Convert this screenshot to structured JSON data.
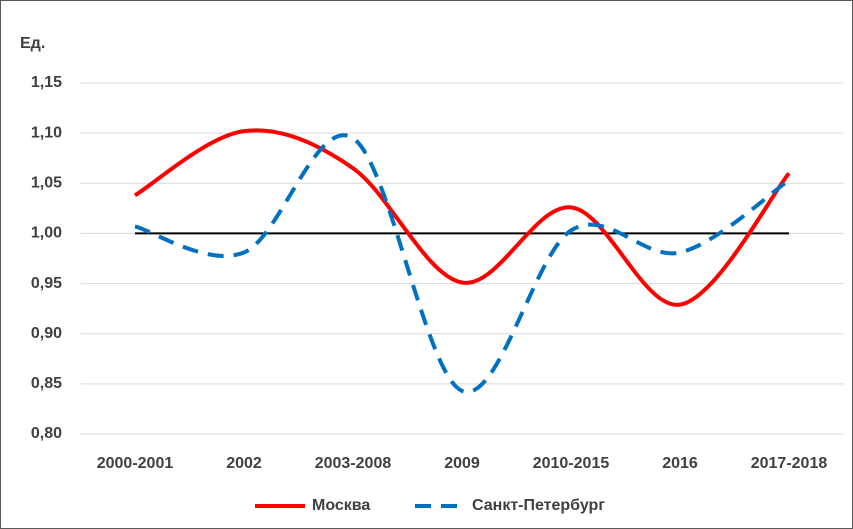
{
  "chart_data": {
    "type": "line",
    "y_label": "Ед.",
    "categories": [
      "2000-2001",
      "2002",
      "2003-2008",
      "2009",
      "2010-2015",
      "2016",
      "2017-2018"
    ],
    "series": [
      {
        "name": "Москва",
        "color": "#ff0000",
        "dash": false,
        "values": [
          1.038,
          1.102,
          1.065,
          0.951,
          1.026,
          0.929,
          1.06
        ]
      },
      {
        "name": "Санкт-Петербург",
        "color": "#0070c0",
        "dash": true,
        "values": [
          1.007,
          0.981,
          1.095,
          0.843,
          1.003,
          0.981,
          1.053
        ]
      }
    ],
    "reference_line": 1.0,
    "reference_color": "#000000",
    "ylim": [
      0.8,
      1.15
    ],
    "yticks": [
      {
        "value": 0.8,
        "label": "0,80"
      },
      {
        "value": 0.85,
        "label": "0,85"
      },
      {
        "value": 0.9,
        "label": "0,90"
      },
      {
        "value": 0.95,
        "label": "0,95"
      },
      {
        "value": 1.0,
        "label": "1,00"
      },
      {
        "value": 1.05,
        "label": "1,05"
      },
      {
        "value": 1.1,
        "label": "1,10"
      },
      {
        "value": 1.15,
        "label": "1,15"
      }
    ],
    "grid": true,
    "legend": "bottom"
  }
}
